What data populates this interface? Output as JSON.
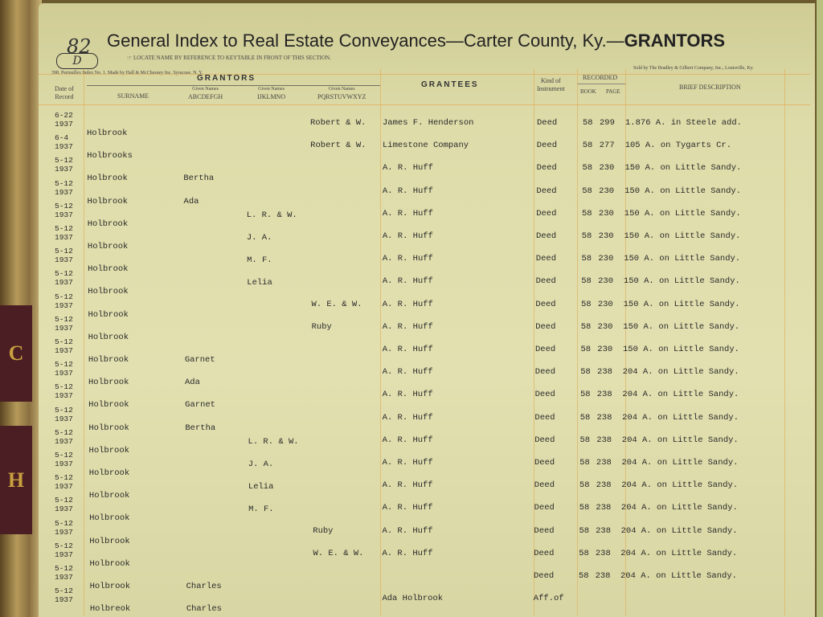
{
  "header": {
    "page_number": "82",
    "page_letter": "D",
    "title": "General Index to Real Estate Conveyances—Carter County, Ky.—",
    "title_bold": "GRANTORS",
    "instruction": "☞ LOCATE NAME BY REFERENCE TO KEYTABLE IN FRONT OF THIS SECTION.",
    "maker": "398. Permuflex Index No. 1. Made by Hall & McChesney Inc, Syracuse, N. Y.",
    "seller": "Sold by The Bradley & Gilbert Company, Inc., Louisville, Ky."
  },
  "columns": {
    "date": [
      "Date of",
      "Record"
    ],
    "grantors": "GRANTORS",
    "surname": "SURNAME",
    "given_label": "Given Names",
    "given_ah": "ABCDEFGH",
    "given_io": "IJKLMNO",
    "given_pz": "PQRSTUVWXYZ",
    "grantees": "GRANTEES",
    "kind": [
      "Kind of",
      "Instrument"
    ],
    "recorded": "RECORDED",
    "book": "BOOK",
    "page": "PAGE",
    "description": "BRIEF DESCRIPTION"
  },
  "rows": [
    {
      "date": "6-22",
      "year": "1937",
      "surname": "Holbrook",
      "ah": "",
      "io": "",
      "pz": "Robert & W.",
      "grantee": "James F. Henderson",
      "kind": "Deed",
      "book": "58",
      "page": "299",
      "desc": "1.876 A. in Steele add."
    },
    {
      "date": "6-4",
      "year": "1937",
      "surname": "Holbrooks",
      "ah": "",
      "io": "",
      "pz": "Robert & W.",
      "grantee": "Limestone Company",
      "kind": "Deed",
      "book": "58",
      "page": "277",
      "desc": "105 A. on Tygarts Cr."
    },
    {
      "date": "5-12",
      "year": "1937",
      "surname": "Holbrook",
      "ah": "Bertha",
      "io": "",
      "pz": "",
      "grantee": "A. R. Huff",
      "kind": "Deed",
      "book": "58",
      "page": "230",
      "desc": "150 A. on Little Sandy."
    },
    {
      "date": "5-12",
      "year": "1937",
      "surname": "Holbrook",
      "ah": "Ada",
      "io": "",
      "pz": "",
      "grantee": "A. R. Huff",
      "kind": "Deed",
      "book": "58",
      "page": "230",
      "desc": "150 A. on Little Sandy."
    },
    {
      "date": "5-12",
      "year": "1937",
      "surname": "Holbrook",
      "ah": "",
      "io": "L. R. & W.",
      "pz": "",
      "grantee": "A. R. Huff",
      "kind": "Deed",
      "book": "58",
      "page": "230",
      "desc": "150 A. on Little Sandy."
    },
    {
      "date": "5-12",
      "year": "1937",
      "surname": "Holbrook",
      "ah": "",
      "io": "J. A.",
      "pz": "",
      "grantee": "A. R. Huff",
      "kind": "Deed",
      "book": "58",
      "page": "230",
      "desc": "150 A. on Little Sandy."
    },
    {
      "date": "5-12",
      "year": "1937",
      "surname": "Holbrook",
      "ah": "",
      "io": "M. F.",
      "pz": "",
      "grantee": "A. R. Huff",
      "kind": "Deed",
      "book": "58",
      "page": "230",
      "desc": "150 A. on Little Sandy."
    },
    {
      "date": "5-12",
      "year": "1937",
      "surname": "Holbrook",
      "ah": "",
      "io": "Lelia",
      "pz": "",
      "grantee": "A. R. Huff",
      "kind": "Deed",
      "book": "58",
      "page": "230",
      "desc": "150 A. on Little Sandy."
    },
    {
      "date": "5-12",
      "year": "1937",
      "surname": "Holbrook",
      "ah": "",
      "io": "",
      "pz": "W. E. & W.",
      "grantee": "A. R. Huff",
      "kind": "Deed",
      "book": "58",
      "page": "230",
      "desc": "150 A. on Little Sandy."
    },
    {
      "date": "5-12",
      "year": "1937",
      "surname": "Holbrook",
      "ah": "",
      "io": "",
      "pz": "Ruby",
      "grantee": "A. R. Huff",
      "kind": "Deed",
      "book": "58",
      "page": "230",
      "desc": "150 A. on Little Sandy."
    },
    {
      "date": "5-12",
      "year": "1937",
      "surname": "Holbrook",
      "ah": "Garnet",
      "io": "",
      "pz": "",
      "grantee": "A. R. Huff",
      "kind": "Deed",
      "book": "58",
      "page": "230",
      "desc": "150 A. on Little Sandy."
    },
    {
      "date": "5-12",
      "year": "1937",
      "surname": "Holbrook",
      "ah": "Ada",
      "io": "",
      "pz": "",
      "grantee": "A. R. Huff",
      "kind": "Deed",
      "book": "58",
      "page": "238",
      "desc": "204 A. on Little Sandy."
    },
    {
      "date": "5-12",
      "year": "1937",
      "surname": "Holbrook",
      "ah": "Garnet",
      "io": "",
      "pz": "",
      "grantee": "A. R. Huff",
      "kind": "Deed",
      "book": "58",
      "page": "238",
      "desc": "204 A. on Little Sandy."
    },
    {
      "date": "5-12",
      "year": "1937",
      "surname": "Holbrook",
      "ah": "Bertha",
      "io": "",
      "pz": "",
      "grantee": "A. R. Huff",
      "kind": "Deed",
      "book": "58",
      "page": "238",
      "desc": "204 A. on Little Sandy."
    },
    {
      "date": "5-12",
      "year": "1937",
      "surname": "Holbrook",
      "ah": "",
      "io": "L. R. & W.",
      "pz": "",
      "grantee": "A. R. Huff",
      "kind": "Deed",
      "book": "58",
      "page": "238",
      "desc": "204 A. on Little Sandy."
    },
    {
      "date": "5-12",
      "year": "1937",
      "surname": "Holbrook",
      "ah": "",
      "io": "J. A.",
      "pz": "",
      "grantee": "A. R. Huff",
      "kind": "Deed",
      "book": "58",
      "page": "238",
      "desc": "204 A. on Little Sandy."
    },
    {
      "date": "5-12",
      "year": "1937",
      "surname": "Holbrook",
      "ah": "",
      "io": "Lelia",
      "pz": "",
      "grantee": "A. R. Huff",
      "kind": "Deed",
      "book": "58",
      "page": "238",
      "desc": "204 A. on Little Sandy."
    },
    {
      "date": "5-12",
      "year": "1937",
      "surname": "Holbrook",
      "ah": "",
      "io": "M. F.",
      "pz": "",
      "grantee": "A. R. Huff",
      "kind": "Deed",
      "book": "58",
      "page": "238",
      "desc": "204 A. on Little Sandy."
    },
    {
      "date": "5-12",
      "year": "1937",
      "surname": "Holbrook",
      "ah": "",
      "io": "",
      "pz": "Ruby",
      "grantee": "A. R. Huff",
      "kind": "Deed",
      "book": "58",
      "page": "238",
      "desc": "204 A. on Little Sandy."
    },
    {
      "date": "5-12",
      "year": "1937",
      "surname": "Holbrook",
      "ah": "",
      "io": "",
      "pz": "W. E. & W.",
      "grantee": "A. R. Huff",
      "kind": "Deed",
      "book": "58",
      "page": "238",
      "desc": "204 A. on Little Sandy."
    },
    {
      "date": "5-12",
      "year": "1937",
      "surname": "Holbrook",
      "ah": "Charles",
      "io": "",
      "pz": "",
      "grantee": "",
      "kind": "Deed",
      "book": "58",
      "page": "238",
      "desc": "204 A. on Little Sandy."
    },
    {
      "date": "5-12",
      "year": "1937",
      "surname": "Holbreok",
      "ah": "Charles",
      "io": "",
      "pz": "",
      "grantee": "Ada Holbrook",
      "kind": "Aff.of",
      "book": "",
      "page": "",
      "desc": ""
    }
  ],
  "tabs": [
    "C",
    "H"
  ],
  "colors": {
    "paper": "#e0deac",
    "rule": "#e0b060",
    "ink": "#2a2a2a",
    "tab": "#4a1e22"
  }
}
